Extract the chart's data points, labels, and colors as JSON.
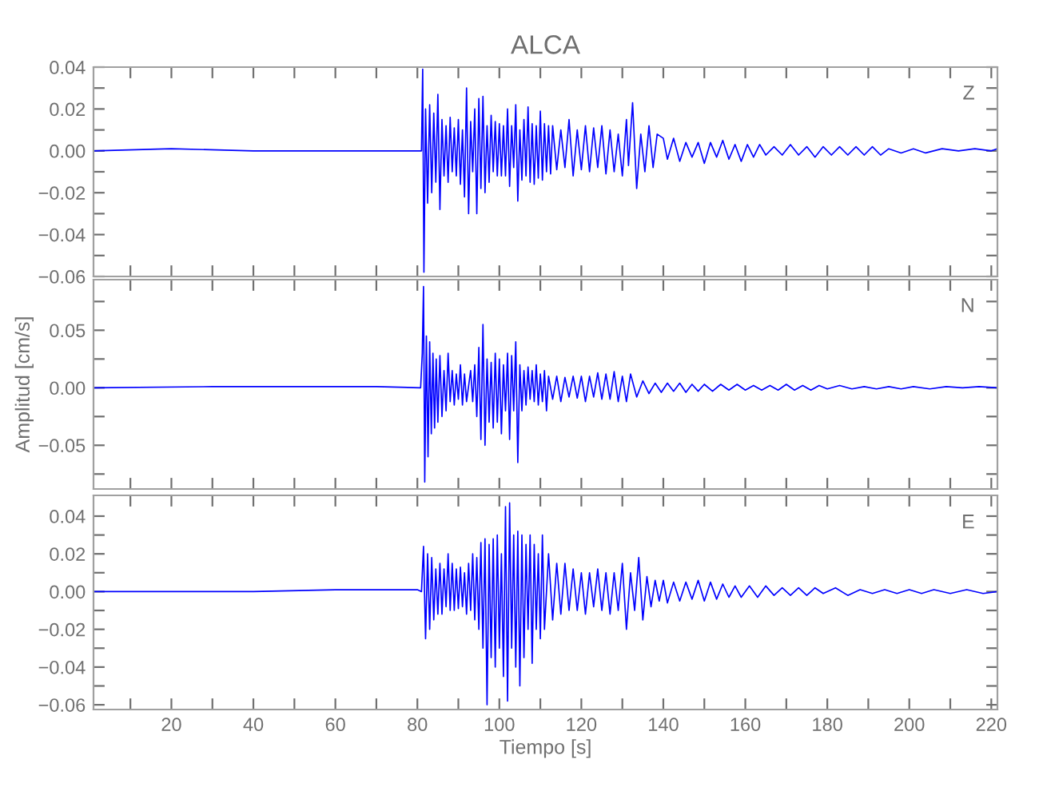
{
  "chart_data": [
    {
      "type": "line",
      "title": "ALCA",
      "annotations": [
        "Z"
      ],
      "tick_labels": "y",
      "grid": false,
      "legend": false,
      "xlim": [
        1,
        221.5
      ],
      "ylim": [
        -0.06,
        0.04
      ],
      "xticks": [
        {
          "value": 10,
          "label": null
        },
        {
          "value": 20,
          "label": null
        },
        {
          "value": 30,
          "label": null
        },
        {
          "value": 40,
          "label": null
        },
        {
          "value": 50,
          "label": null
        },
        {
          "value": 60,
          "label": null
        },
        {
          "value": 70,
          "label": null
        },
        {
          "value": 80,
          "label": null
        },
        {
          "value": 90,
          "label": null
        },
        {
          "value": 100,
          "label": null
        },
        {
          "value": 110,
          "label": null
        },
        {
          "value": 120,
          "label": null
        },
        {
          "value": 130,
          "label": null
        },
        {
          "value": 140,
          "label": null
        },
        {
          "value": 150,
          "label": null
        },
        {
          "value": 160,
          "label": null
        },
        {
          "value": 170,
          "label": null
        },
        {
          "value": 180,
          "label": null
        },
        {
          "value": 190,
          "label": null
        },
        {
          "value": 200,
          "label": null
        },
        {
          "value": 210,
          "label": null
        },
        {
          "value": 220,
          "label": null
        }
      ],
      "yticks": [
        {
          "value": -0.06,
          "label": "−0.06"
        },
        {
          "value": -0.05,
          "label": null
        },
        {
          "value": -0.04,
          "label": "−0.04"
        },
        {
          "value": -0.03,
          "label": null
        },
        {
          "value": -0.02,
          "label": "−0.02"
        },
        {
          "value": -0.01,
          "label": null
        },
        {
          "value": 0,
          "label": "0.00"
        },
        {
          "value": 0.01,
          "label": null
        },
        {
          "value": 0.02,
          "label": "0.02"
        },
        {
          "value": 0.03,
          "label": null
        },
        {
          "value": 0.04,
          "label": "0.04"
        }
      ],
      "series": [
        {
          "color": "#0000ff",
          "x": [
            1,
            20,
            40,
            60,
            80,
            81,
            81.3,
            81.6,
            82,
            82.5,
            83,
            83.5,
            84,
            84.5,
            85,
            85.5,
            86,
            86.5,
            87,
            87.5,
            88,
            88.5,
            89,
            89.5,
            90,
            90.5,
            91,
            91.5,
            92,
            92.5,
            93,
            93.5,
            94,
            94.5,
            95,
            95.5,
            96,
            96.5,
            97,
            97.5,
            98,
            98.5,
            99,
            99.5,
            100,
            100.5,
            101,
            101.5,
            102,
            102.5,
            103,
            103.5,
            104,
            104.5,
            105,
            105.5,
            106,
            106.5,
            107,
            107.5,
            108,
            108.5,
            109,
            109.5,
            110,
            110.5,
            111,
            111.5,
            112,
            112.5,
            113,
            114,
            115,
            116,
            117,
            118,
            119,
            120,
            121,
            122,
            123,
            124,
            125,
            126,
            127,
            128,
            129,
            130,
            131,
            131.5,
            132.5,
            133.5,
            134.5,
            135.5,
            136.5,
            137.5,
            138.5,
            140,
            141,
            142.5,
            144,
            145.5,
            147,
            148.5,
            150,
            151.5,
            153,
            154.5,
            156,
            157.5,
            159,
            160.5,
            162,
            163.5,
            165,
            167,
            169,
            171,
            173,
            175,
            177,
            179,
            181,
            183,
            185,
            187,
            189,
            191,
            193,
            195,
            198,
            201,
            204,
            208,
            212,
            216,
            220,
            221.5
          ],
          "values": [
            0,
            0.001,
            0,
            0,
            0,
            0,
            0.039,
            -0.058,
            0.02,
            -0.025,
            0.022,
            -0.02,
            0.018,
            -0.015,
            0.027,
            -0.028,
            0.015,
            -0.012,
            0.012,
            -0.015,
            0.016,
            -0.01,
            0.011,
            -0.012,
            0.015,
            -0.016,
            0.01,
            -0.022,
            0.03,
            -0.03,
            0.014,
            -0.01,
            0.02,
            -0.03,
            0.025,
            -0.018,
            0.026,
            -0.02,
            0.012,
            -0.015,
            0.017,
            -0.01,
            0.014,
            -0.012,
            0.013,
            -0.012,
            0.012,
            -0.012,
            0.02,
            -0.017,
            0.012,
            -0.008,
            0.022,
            -0.024,
            0.01,
            -0.014,
            0.015,
            -0.012,
            0.021,
            -0.015,
            0.013,
            -0.016,
            0.012,
            -0.013,
            0.019,
            -0.014,
            0.013,
            -0.01,
            0.012,
            -0.011,
            0.012,
            -0.009,
            0.01,
            -0.008,
            0.015,
            -0.012,
            0.01,
            -0.009,
            0.012,
            -0.01,
            0.011,
            -0.008,
            0.012,
            -0.011,
            0.01,
            -0.01,
            0.008,
            -0.012,
            0.015,
            -0.007,
            0.023,
            -0.018,
            0.008,
            -0.01,
            0.012,
            -0.008,
            0.008,
            0.006,
            -0.004,
            0.006,
            -0.005,
            0.004,
            -0.003,
            0.004,
            -0.006,
            0.004,
            -0.003,
            0.005,
            -0.004,
            0.003,
            -0.005,
            0.003,
            -0.003,
            0.003,
            -0.002,
            0.002,
            -0.002,
            0.003,
            -0.002,
            0.002,
            -0.003,
            0.002,
            -0.002,
            0.002,
            -0.002,
            0.002,
            -0.002,
            0.002,
            -0.002,
            0.001,
            -0.001,
            0.001,
            -0.001,
            0.001,
            0,
            0.001,
            0,
            0.001
          ]
        }
      ]
    },
    {
      "type": "line",
      "ylabel": "Amplitud [cm/s]",
      "annotations": [
        "N"
      ],
      "tick_labels": "y",
      "grid": false,
      "legend": false,
      "xlim": [
        1,
        221.5
      ],
      "ylim": [
        -0.088,
        0.094
      ],
      "xticks": [
        {
          "value": 10,
          "label": null
        },
        {
          "value": 20,
          "label": null
        },
        {
          "value": 30,
          "label": null
        },
        {
          "value": 40,
          "label": null
        },
        {
          "value": 50,
          "label": null
        },
        {
          "value": 60,
          "label": null
        },
        {
          "value": 70,
          "label": null
        },
        {
          "value": 80,
          "label": null
        },
        {
          "value": 90,
          "label": null
        },
        {
          "value": 100,
          "label": null
        },
        {
          "value": 110,
          "label": null
        },
        {
          "value": 120,
          "label": null
        },
        {
          "value": 130,
          "label": null
        },
        {
          "value": 140,
          "label": null
        },
        {
          "value": 150,
          "label": null
        },
        {
          "value": 160,
          "label": null
        },
        {
          "value": 170,
          "label": null
        },
        {
          "value": 180,
          "label": null
        },
        {
          "value": 190,
          "label": null
        },
        {
          "value": 200,
          "label": null
        },
        {
          "value": 210,
          "label": null
        },
        {
          "value": 220,
          "label": null
        }
      ],
      "yticks": [
        {
          "value": -0.075,
          "label": null
        },
        {
          "value": -0.05,
          "label": "−0.05"
        },
        {
          "value": -0.025,
          "label": null
        },
        {
          "value": 0,
          "label": "0.00"
        },
        {
          "value": 0.025,
          "label": null
        },
        {
          "value": 0.05,
          "label": "0.05"
        },
        {
          "value": 0.075,
          "label": null
        }
      ],
      "series": [
        {
          "color": "#0000ff",
          "x": [
            1,
            30,
            50,
            70,
            80.8,
            81.2,
            81.5,
            81.8,
            82.2,
            82.6,
            83,
            83.4,
            83.8,
            84.2,
            84.6,
            85,
            85.5,
            86,
            86.5,
            87,
            87.5,
            88,
            88.5,
            89,
            89.5,
            90,
            90.5,
            91,
            91.5,
            92,
            93,
            93.5,
            94,
            94.5,
            95,
            95.5,
            96,
            96.5,
            97,
            97.5,
            98,
            98.5,
            99,
            99.5,
            100,
            100.5,
            101,
            101.5,
            102,
            102.5,
            103,
            103.5,
            104,
            104.5,
            105,
            105.5,
            106,
            106.5,
            107,
            107.5,
            108,
            108.5,
            109,
            109.5,
            110,
            110.5,
            111,
            111.5,
            112,
            113,
            114,
            115,
            116,
            117,
            118,
            119,
            120,
            121,
            122,
            123,
            124,
            125,
            126,
            127,
            128,
            129,
            130,
            131,
            132,
            133.5,
            135,
            136.5,
            138,
            139.5,
            141,
            142.5,
            144,
            145.5,
            147,
            148.5,
            150,
            152,
            154,
            156,
            158,
            160,
            162,
            164,
            166,
            168,
            170,
            172,
            174,
            176,
            178,
            180,
            183,
            186,
            189,
            192,
            195,
            198,
            201,
            205,
            209,
            213,
            217,
            221.5
          ],
          "values": [
            0,
            0.001,
            0.001,
            0.001,
            0,
            0.03,
            0.088,
            -0.082,
            0.045,
            -0.06,
            0.04,
            -0.04,
            0.03,
            -0.035,
            0.025,
            -0.03,
            0.028,
            -0.025,
            0.015,
            -0.02,
            0.03,
            -0.012,
            0.015,
            -0.015,
            0.012,
            -0.01,
            0.02,
            -0.015,
            0.012,
            -0.012,
            0.015,
            -0.012,
            0.02,
            -0.025,
            0.035,
            -0.045,
            0.055,
            -0.05,
            0.025,
            -0.03,
            0.022,
            -0.035,
            0.03,
            -0.03,
            0.025,
            -0.04,
            0.02,
            -0.02,
            0.03,
            -0.045,
            0.028,
            -0.02,
            0.04,
            -0.065,
            0.02,
            -0.02,
            0.015,
            -0.015,
            0.018,
            -0.01,
            0.015,
            -0.012,
            0.02,
            -0.015,
            0.012,
            -0.012,
            0.015,
            -0.02,
            0.01,
            -0.01,
            0.01,
            -0.012,
            0.009,
            -0.008,
            0.01,
            -0.009,
            0.01,
            -0.012,
            0.01,
            -0.008,
            0.013,
            -0.01,
            0.012,
            -0.01,
            0.014,
            -0.012,
            0.01,
            -0.012,
            0.012,
            -0.008,
            0.006,
            -0.005,
            0.004,
            -0.004,
            0.004,
            -0.003,
            0.004,
            -0.004,
            0.003,
            -0.003,
            0.003,
            -0.003,
            0.003,
            -0.002,
            0.003,
            -0.002,
            0.002,
            -0.002,
            0.002,
            -0.002,
            0.003,
            -0.002,
            0.002,
            -0.002,
            0.002,
            -0.001,
            0.002,
            -0.001,
            0.001,
            -0.001,
            0.001,
            -0.001,
            0.001,
            -0.001,
            0.001,
            0,
            0.001,
            0
          ]
        }
      ]
    },
    {
      "type": "line",
      "xlabel": "Tiempo [s]",
      "annotations": [
        "E"
      ],
      "grid": false,
      "legend": false,
      "xlim": [
        1,
        221.5
      ],
      "ylim": [
        -0.0625,
        0.051
      ],
      "xticks": [
        {
          "value": 10,
          "label": null
        },
        {
          "value": 20,
          "label": "20"
        },
        {
          "value": 30,
          "label": null
        },
        {
          "value": 40,
          "label": "40"
        },
        {
          "value": 50,
          "label": null
        },
        {
          "value": 60,
          "label": "60"
        },
        {
          "value": 70,
          "label": null
        },
        {
          "value": 80,
          "label": "80"
        },
        {
          "value": 90,
          "label": null
        },
        {
          "value": 100,
          "label": "100"
        },
        {
          "value": 110,
          "label": null
        },
        {
          "value": 120,
          "label": "120"
        },
        {
          "value": 130,
          "label": null
        },
        {
          "value": 140,
          "label": "140"
        },
        {
          "value": 150,
          "label": null
        },
        {
          "value": 160,
          "label": "160"
        },
        {
          "value": 170,
          "label": null
        },
        {
          "value": 180,
          "label": "180"
        },
        {
          "value": 190,
          "label": null
        },
        {
          "value": 200,
          "label": "200"
        },
        {
          "value": 210,
          "label": null
        },
        {
          "value": 220,
          "label": "220"
        }
      ],
      "yticks": [
        {
          "value": -0.06,
          "label": "−0.06"
        },
        {
          "value": -0.05,
          "label": null
        },
        {
          "value": -0.04,
          "label": "−0.04"
        },
        {
          "value": -0.03,
          "label": null
        },
        {
          "value": -0.02,
          "label": "−0.02"
        },
        {
          "value": -0.01,
          "label": null
        },
        {
          "value": 0,
          "label": "0.00"
        },
        {
          "value": 0.01,
          "label": null
        },
        {
          "value": 0.02,
          "label": "0.02"
        },
        {
          "value": 0.03,
          "label": null
        },
        {
          "value": 0.04,
          "label": "0.04"
        }
      ],
      "series": [
        {
          "color": "#0000ff",
          "x": [
            1,
            20,
            40,
            60,
            80,
            81,
            81.5,
            82,
            82.5,
            83,
            83.5,
            84,
            84.5,
            85,
            85.5,
            86,
            86.5,
            87,
            87.5,
            88,
            88.5,
            89,
            89.5,
            90,
            90.5,
            91,
            91.5,
            92,
            92.5,
            93,
            93.5,
            94,
            94.5,
            95,
            95.5,
            96,
            96.5,
            97,
            97.5,
            98,
            98.5,
            99,
            99.5,
            100,
            100.5,
            101,
            101.5,
            102,
            102.5,
            103,
            103.5,
            104,
            104.5,
            105,
            105.5,
            106,
            106.5,
            107,
            107.5,
            108,
            108.5,
            109,
            109.5,
            110,
            110.5,
            111,
            112,
            113,
            114,
            115,
            116,
            117,
            118,
            119,
            120,
            121,
            122,
            123,
            124,
            125,
            126,
            127,
            128,
            129,
            130,
            131,
            132,
            133,
            134,
            135,
            136,
            137,
            138,
            139,
            140,
            141,
            142.5,
            144,
            145.5,
            147,
            148.5,
            150,
            151.5,
            153,
            154.5,
            156,
            157.5,
            159,
            161,
            163,
            165,
            167,
            169,
            171,
            173,
            175,
            177,
            179,
            182,
            185,
            188,
            191,
            194,
            197,
            200,
            203,
            206,
            210,
            214,
            218,
            221.5
          ],
          "values": [
            0,
            0,
            0,
            0.001,
            0.001,
            0,
            0.024,
            -0.025,
            0.02,
            -0.02,
            0.018,
            -0.015,
            0.012,
            -0.012,
            0.015,
            -0.012,
            0.012,
            -0.008,
            0.02,
            -0.01,
            0.015,
            -0.01,
            0.012,
            -0.009,
            0.013,
            -0.008,
            0.01,
            -0.012,
            0.015,
            -0.01,
            0.02,
            -0.015,
            0.018,
            -0.02,
            0.026,
            -0.03,
            0.028,
            -0.06,
            0.025,
            -0.035,
            0.028,
            -0.04,
            0.03,
            -0.03,
            0.02,
            -0.045,
            0.045,
            -0.058,
            0.047,
            -0.03,
            0.03,
            -0.04,
            0.032,
            -0.05,
            0.03,
            -0.035,
            0.025,
            -0.02,
            0.03,
            -0.038,
            0.025,
            -0.02,
            0.02,
            -0.025,
            0.03,
            -0.02,
            0.02,
            -0.015,
            0.015,
            -0.012,
            0.015,
            -0.01,
            0.012,
            -0.01,
            0.01,
            -0.012,
            0.01,
            -0.008,
            0.012,
            -0.01,
            0.01,
            -0.012,
            0.01,
            -0.01,
            0.015,
            -0.02,
            0.01,
            -0.01,
            0.018,
            -0.015,
            0.008,
            -0.008,
            0.006,
            -0.005,
            0.006,
            -0.006,
            0.005,
            -0.005,
            0.005,
            -0.004,
            0.006,
            -0.005,
            0.005,
            -0.004,
            0.004,
            -0.003,
            0.003,
            -0.003,
            0.003,
            -0.003,
            0.003,
            -0.002,
            0.002,
            -0.002,
            0.002,
            -0.002,
            0.002,
            -0.001,
            0.002,
            -0.002,
            0.001,
            -0.001,
            0.001,
            -0.001,
            0.001,
            -0.001,
            0.001,
            -0.001,
            0.001,
            -0.001,
            0
          ]
        }
      ]
    }
  ]
}
